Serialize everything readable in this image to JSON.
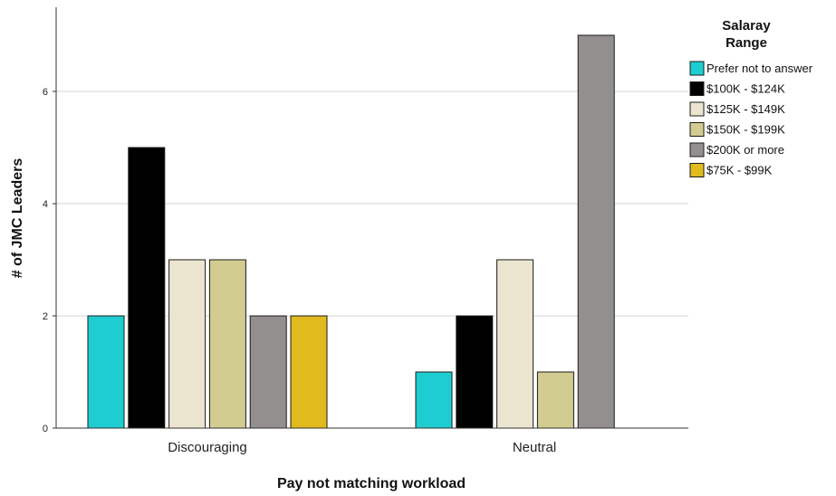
{
  "chart_data": {
    "type": "bar",
    "categories": [
      "Discouraging",
      "Neutral"
    ],
    "xlabel": "Pay not matching workload",
    "ylabel": "# of JMC Leaders",
    "ylim": [
      0,
      7.5
    ],
    "yticks": [
      0,
      2,
      4,
      6
    ],
    "grid": true,
    "legend": {
      "title_lines": [
        "Salaray",
        "Range"
      ],
      "placement": "right"
    },
    "series": [
      {
        "name": "Prefer not to answer",
        "color": "#1ecdd1",
        "values": [
          2,
          1
        ]
      },
      {
        "name": "$100K - $124K",
        "color": "#000000",
        "values": [
          5,
          2
        ]
      },
      {
        "name": "$125K - $149K",
        "color": "#ebe5cf",
        "values": [
          3,
          3
        ]
      },
      {
        "name": "$150K - $199K",
        "color": "#d2cc91",
        "values": [
          3,
          1
        ]
      },
      {
        "name": "$200K or more",
        "color": "#948f8f",
        "values": [
          2,
          7
        ]
      },
      {
        "name": "$75K - $99K",
        "color": "#e1ba1e",
        "values": [
          2,
          null
        ]
      }
    ]
  }
}
